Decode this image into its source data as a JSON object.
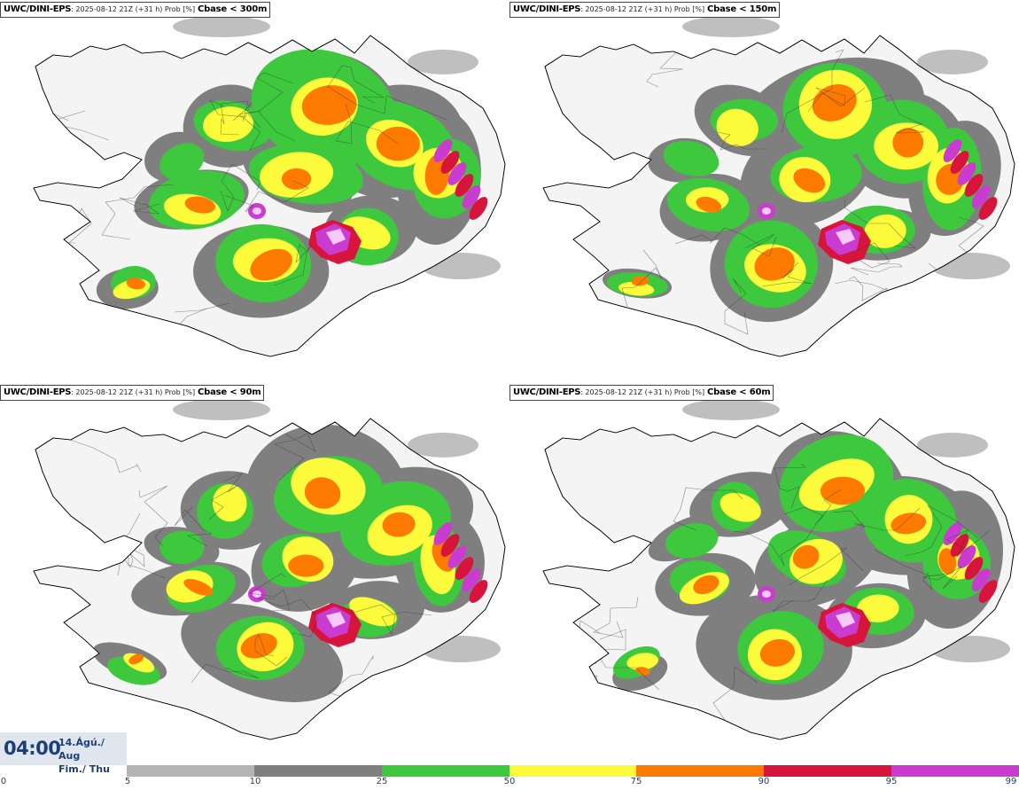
{
  "panels": [
    {
      "model": "UWC/DINI-EPS",
      "meta": ": 2025-08-12 21Z (+31 h) Prob [%]",
      "param": "Cbase < 300m"
    },
    {
      "model": "UWC/DINI-EPS",
      "meta": ": 2025-08-12 21Z (+31 h) Prob [%]",
      "param": "Cbase < 150m"
    },
    {
      "model": "UWC/DINI-EPS",
      "meta": ": 2025-08-12 21Z (+31 h) Prob [%]",
      "param": "Cbase < 90m"
    },
    {
      "model": "UWC/DINI-EPS",
      "meta": ": 2025-08-12 21Z (+31 h) Prob [%]",
      "param": "Cbase < 60m"
    }
  ],
  "valid_time": {
    "time": "04:00",
    "date_line1": "14.Ágú./ Aug",
    "date_line2": "Fim./ Thu"
  },
  "colorbar": {
    "ticks": [
      "0",
      "5",
      "10",
      "25",
      "50",
      "75",
      "90",
      "95",
      "99"
    ],
    "colors": [
      "#b4b4b4",
      "#7f7f7f",
      "#3dc83d",
      "#fbfb3c",
      "#fc7a00",
      "#d6143c",
      "#c93ccf",
      "#f6c9f8"
    ]
  }
}
